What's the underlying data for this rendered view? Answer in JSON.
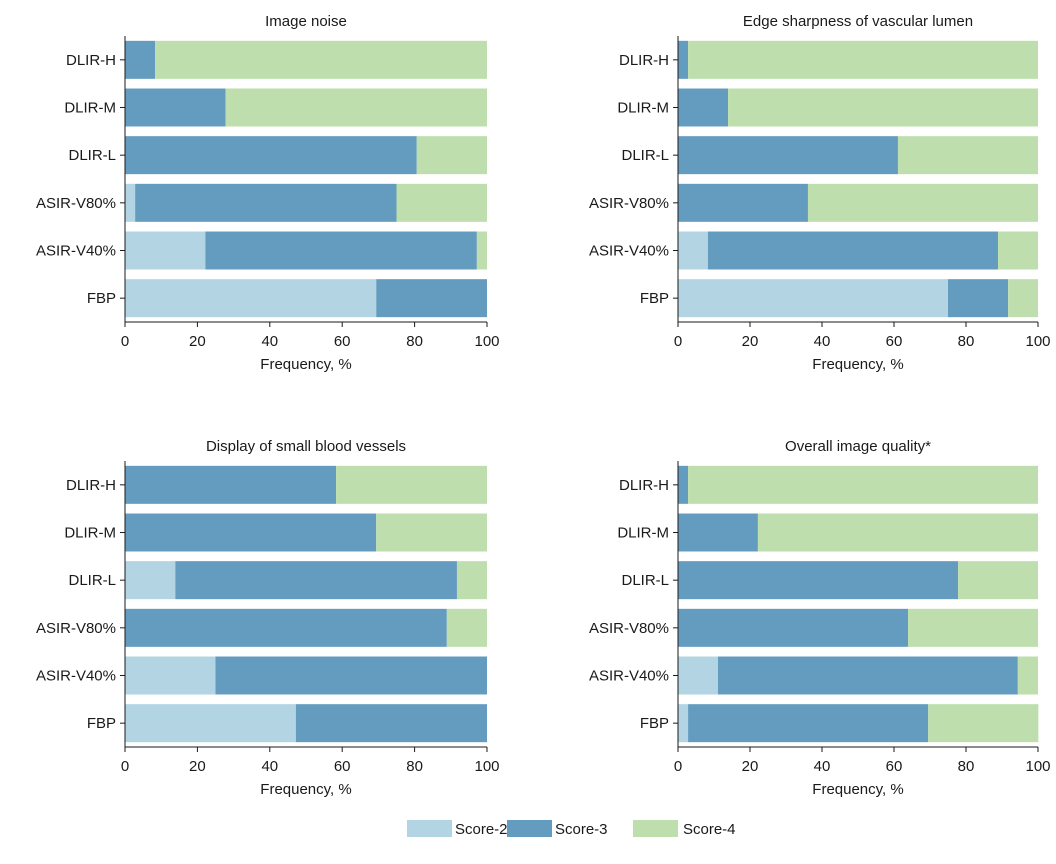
{
  "chart_data": [
    {
      "type": "bar",
      "orientation": "horizontal",
      "stacked": true,
      "title": "Image noise",
      "xlabel": "Frequency, %",
      "ylabel": "",
      "xlim": [
        0,
        100
      ],
      "xticks": [
        "0",
        "20",
        "40",
        "60",
        "80",
        "100"
      ],
      "categories": [
        "DLIR-H",
        "DLIR-M",
        "DLIR-L",
        "ASIR-V80%",
        "ASIR-V40%",
        "FBP"
      ],
      "series": [
        {
          "name": "Score-2",
          "values": [
            0,
            0,
            0,
            2.8,
            22.2,
            69.4
          ]
        },
        {
          "name": "Score-3",
          "values": [
            8.3,
            27.8,
            80.6,
            72.2,
            75.0,
            30.6
          ]
        },
        {
          "name": "Score-4",
          "values": [
            91.7,
            72.2,
            19.4,
            25.0,
            2.8,
            0
          ]
        }
      ]
    },
    {
      "type": "bar",
      "orientation": "horizontal",
      "stacked": true,
      "title": "Edge sharpness of vascular lumen",
      "xlabel": "Frequency, %",
      "ylabel": "",
      "xlim": [
        0,
        100
      ],
      "xticks": [
        "0",
        "20",
        "40",
        "60",
        "80",
        "100"
      ],
      "categories": [
        "DLIR-H",
        "DLIR-M",
        "DLIR-L",
        "ASIR-V80%",
        "ASIR-V40%",
        "FBP"
      ],
      "series": [
        {
          "name": "Score-2",
          "values": [
            0,
            0,
            0,
            0,
            8.3,
            75.0
          ]
        },
        {
          "name": "Score-3",
          "values": [
            2.8,
            13.9,
            61.1,
            36.1,
            80.6,
            16.7
          ]
        },
        {
          "name": "Score-4",
          "values": [
            97.2,
            86.1,
            38.9,
            63.9,
            11.1,
            8.3
          ]
        }
      ]
    },
    {
      "type": "bar",
      "orientation": "horizontal",
      "stacked": true,
      "title": "Display of small blood vessels",
      "xlabel": "Frequency, %",
      "ylabel": "",
      "xlim": [
        0,
        100
      ],
      "xticks": [
        "0",
        "20",
        "40",
        "60",
        "80",
        "100"
      ],
      "categories": [
        "DLIR-H",
        "DLIR-M",
        "DLIR-L",
        "ASIR-V80%",
        "ASIR-V40%",
        "FBP"
      ],
      "series": [
        {
          "name": "Score-2",
          "values": [
            0,
            0,
            13.9,
            0,
            25.0,
            47.2
          ]
        },
        {
          "name": "Score-3",
          "values": [
            58.3,
            69.4,
            77.8,
            88.9,
            75.0,
            52.8
          ]
        },
        {
          "name": "Score-4",
          "values": [
            41.7,
            30.6,
            8.3,
            11.1,
            0,
            0
          ]
        }
      ]
    },
    {
      "type": "bar",
      "orientation": "horizontal",
      "stacked": true,
      "title": "Overall image quality*",
      "xlabel": "Frequency, %",
      "ylabel": "",
      "xlim": [
        0,
        100
      ],
      "xticks": [
        "0",
        "20",
        "40",
        "60",
        "80",
        "100"
      ],
      "categories": [
        "DLIR-H",
        "DLIR-M",
        "DLIR-L",
        "ASIR-V80%",
        "ASIR-V40%",
        "FBP"
      ],
      "series": [
        {
          "name": "Score-2",
          "values": [
            0,
            0,
            0,
            0,
            11.1,
            2.8
          ]
        },
        {
          "name": "Score-3",
          "values": [
            2.8,
            22.2,
            77.8,
            63.9,
            83.3,
            66.7
          ]
        },
        {
          "name": "Score-4",
          "values": [
            97.2,
            77.8,
            22.2,
            36.1,
            5.6,
            30.6
          ]
        }
      ]
    }
  ],
  "legend": {
    "placement": "bottom-center",
    "items": [
      {
        "label": "Score-2",
        "color": "#b3d4e3"
      },
      {
        "label": "Score-3",
        "color": "#649cbf"
      },
      {
        "label": "Score-4",
        "color": "#bedfad"
      }
    ]
  },
  "colors": {
    "score2": "#b3d4e3",
    "score3": "#649cbf",
    "score4": "#bedfad"
  }
}
